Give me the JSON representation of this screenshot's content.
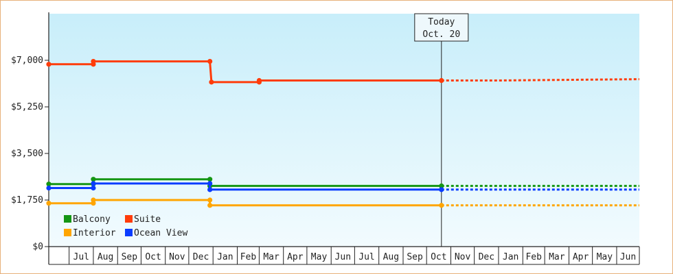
{
  "chart_data": {
    "type": "line",
    "title": "",
    "xlabel": "",
    "ylabel": "",
    "ylim": [
      0,
      8750
    ],
    "y_ticks": [
      0,
      1750,
      3500,
      5250,
      7000
    ],
    "y_tick_labels": [
      "$0",
      "$1,750",
      "$3,500",
      "$5,250",
      "$7,000"
    ],
    "x_start": "2025-06-05",
    "x_end": "2027-06-30",
    "month_labels": [
      {
        "label": "Jul",
        "start": "2025-07-01"
      },
      {
        "label": "Aug",
        "start": "2025-08-01"
      },
      {
        "label": "Sep",
        "start": "2025-09-01"
      },
      {
        "label": "Oct",
        "start": "2025-10-01"
      },
      {
        "label": "Nov",
        "start": "2025-11-01"
      },
      {
        "label": "Dec",
        "start": "2025-12-01"
      },
      {
        "label": "Jan",
        "start": "2026-01-01"
      },
      {
        "label": "Feb",
        "start": "2026-02-01"
      },
      {
        "label": "Mar",
        "start": "2026-03-01"
      },
      {
        "label": "Apr",
        "start": "2026-04-01"
      },
      {
        "label": "May",
        "start": "2026-05-01"
      },
      {
        "label": "Jun",
        "start": "2026-06-01"
      },
      {
        "label": "Jul",
        "start": "2026-07-01"
      },
      {
        "label": "Aug",
        "start": "2026-08-01"
      },
      {
        "label": "Sep",
        "start": "2026-09-01"
      },
      {
        "label": "Oct",
        "start": "2026-10-01"
      },
      {
        "label": "Nov",
        "start": "2026-11-01"
      },
      {
        "label": "Dec",
        "start": "2026-12-01"
      },
      {
        "label": "Jan",
        "start": "2027-01-01"
      },
      {
        "label": "Feb",
        "start": "2027-02-01"
      },
      {
        "label": "Mar",
        "start": "2027-03-01"
      },
      {
        "label": "Apr",
        "start": "2027-04-01"
      },
      {
        "label": "May",
        "start": "2027-05-01"
      },
      {
        "label": "Jun",
        "start": "2027-06-01"
      }
    ],
    "today": {
      "date": "2026-10-20",
      "line1": "Today",
      "line2": "Oct. 20"
    },
    "legend_placement": "bottom-left",
    "series": [
      {
        "name": "Balcony",
        "color": "#149614",
        "points": [
          [
            "2025-06-05",
            2350
          ],
          [
            "2025-08-01",
            2350
          ],
          [
            "2025-08-01",
            2530
          ],
          [
            "2025-12-28",
            2530
          ],
          [
            "2025-12-28",
            2280
          ],
          [
            "2026-10-20",
            2280
          ]
        ],
        "markers": [
          [
            "2025-06-05",
            2350
          ],
          [
            "2025-08-01",
            2350
          ],
          [
            "2025-08-01",
            2530
          ],
          [
            "2025-12-28",
            2530
          ],
          [
            "2025-12-28",
            2280
          ],
          [
            "2026-10-20",
            2280
          ]
        ],
        "forecast": [
          [
            "2026-10-20",
            2280
          ],
          [
            "2027-06-30",
            2280
          ]
        ]
      },
      {
        "name": "Suite",
        "color": "#ff3c0a",
        "points": [
          [
            "2025-06-05",
            6850
          ],
          [
            "2025-08-01",
            6850
          ],
          [
            "2025-08-01",
            6960
          ],
          [
            "2025-12-28",
            6960
          ],
          [
            "2025-12-30",
            6180
          ],
          [
            "2026-03-01",
            6180
          ],
          [
            "2026-03-01",
            6240
          ],
          [
            "2026-10-20",
            6240
          ]
        ],
        "markers": [
          [
            "2025-06-05",
            6850
          ],
          [
            "2025-08-01",
            6850
          ],
          [
            "2025-08-01",
            6960
          ],
          [
            "2025-12-28",
            6960
          ],
          [
            "2025-12-30",
            6180
          ],
          [
            "2026-03-01",
            6180
          ],
          [
            "2026-03-01",
            6240
          ],
          [
            "2026-10-20",
            6240
          ]
        ],
        "forecast": [
          [
            "2026-10-20",
            6240
          ],
          [
            "2026-12-31",
            6240
          ],
          [
            "2027-06-30",
            6290
          ]
        ]
      },
      {
        "name": "Interior",
        "color": "#ffa500",
        "points": [
          [
            "2025-06-05",
            1630
          ],
          [
            "2025-08-01",
            1630
          ],
          [
            "2025-08-01",
            1750
          ],
          [
            "2025-12-28",
            1750
          ],
          [
            "2025-12-28",
            1550
          ],
          [
            "2026-10-20",
            1550
          ]
        ],
        "markers": [
          [
            "2025-06-05",
            1630
          ],
          [
            "2025-08-01",
            1630
          ],
          [
            "2025-08-01",
            1750
          ],
          [
            "2025-12-28",
            1750
          ],
          [
            "2025-12-28",
            1550
          ],
          [
            "2026-10-20",
            1550
          ]
        ],
        "forecast": [
          [
            "2026-10-20",
            1550
          ],
          [
            "2027-06-30",
            1550
          ]
        ]
      },
      {
        "name": "Ocean View",
        "color": "#0a3cff",
        "points": [
          [
            "2025-06-05",
            2200
          ],
          [
            "2025-08-01",
            2200
          ],
          [
            "2025-08-01",
            2370
          ],
          [
            "2025-12-28",
            2370
          ],
          [
            "2025-12-28",
            2140
          ],
          [
            "2026-10-20",
            2140
          ]
        ],
        "markers": [
          [
            "2025-06-05",
            2200
          ],
          [
            "2025-08-01",
            2200
          ],
          [
            "2025-08-01",
            2370
          ],
          [
            "2025-12-28",
            2370
          ],
          [
            "2025-12-28",
            2140
          ],
          [
            "2026-10-20",
            2140
          ]
        ],
        "forecast": [
          [
            "2026-10-20",
            2140
          ],
          [
            "2027-06-30",
            2140
          ]
        ]
      }
    ]
  }
}
